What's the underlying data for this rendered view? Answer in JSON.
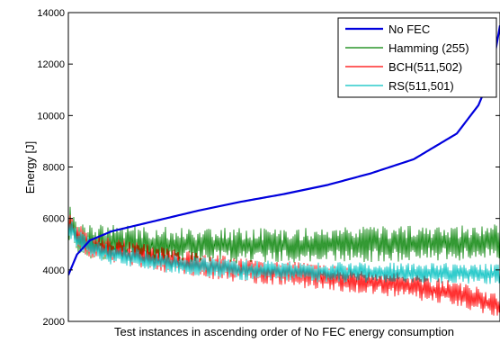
{
  "chart_data": {
    "type": "line",
    "title": "",
    "xlabel": "Test instances in ascending order of No FEC energy consumption",
    "ylabel": "Energy [J]",
    "x_tick_labels": [],
    "ylim": [
      2000,
      14000
    ],
    "yticks": [
      2000,
      4000,
      6000,
      8000,
      10000,
      12000,
      14000
    ],
    "grid": false,
    "legend_position": "top-right",
    "x": [
      0,
      2,
      5,
      10,
      20,
      30,
      40,
      50,
      60,
      70,
      80,
      90,
      95,
      98,
      100
    ],
    "series": [
      {
        "name": "No FEC",
        "color": "#0000dd",
        "style": "thick",
        "values": [
          3800,
          4600,
          5150,
          5500,
          5900,
          6300,
          6650,
          6950,
          7300,
          7750,
          8300,
          9300,
          10400,
          11600,
          13500
        ]
      },
      {
        "name": "Hamming (255)",
        "color": "#008000",
        "style": "noisy",
        "noise": 700,
        "values": [
          5900,
          5350,
          5150,
          5050,
          5000,
          4980,
          4950,
          4950,
          4970,
          5000,
          5020,
          5050,
          5060,
          5070,
          5080
        ]
      },
      {
        "name": "BCH(511,502)",
        "color": "#ff0000",
        "style": "noisy",
        "noise": 500,
        "values": [
          5900,
          5300,
          5000,
          4750,
          4450,
          4200,
          4000,
          3850,
          3700,
          3550,
          3350,
          3050,
          2850,
          2650,
          2600
        ]
      },
      {
        "name": "RS(511,501)",
        "color": "#00c0c0",
        "style": "noisy",
        "noise": 400,
        "values": [
          5700,
          5200,
          4900,
          4600,
          4350,
          4150,
          4000,
          3950,
          3900,
          3900,
          3880,
          3870,
          3860,
          3850,
          3850
        ]
      }
    ]
  }
}
